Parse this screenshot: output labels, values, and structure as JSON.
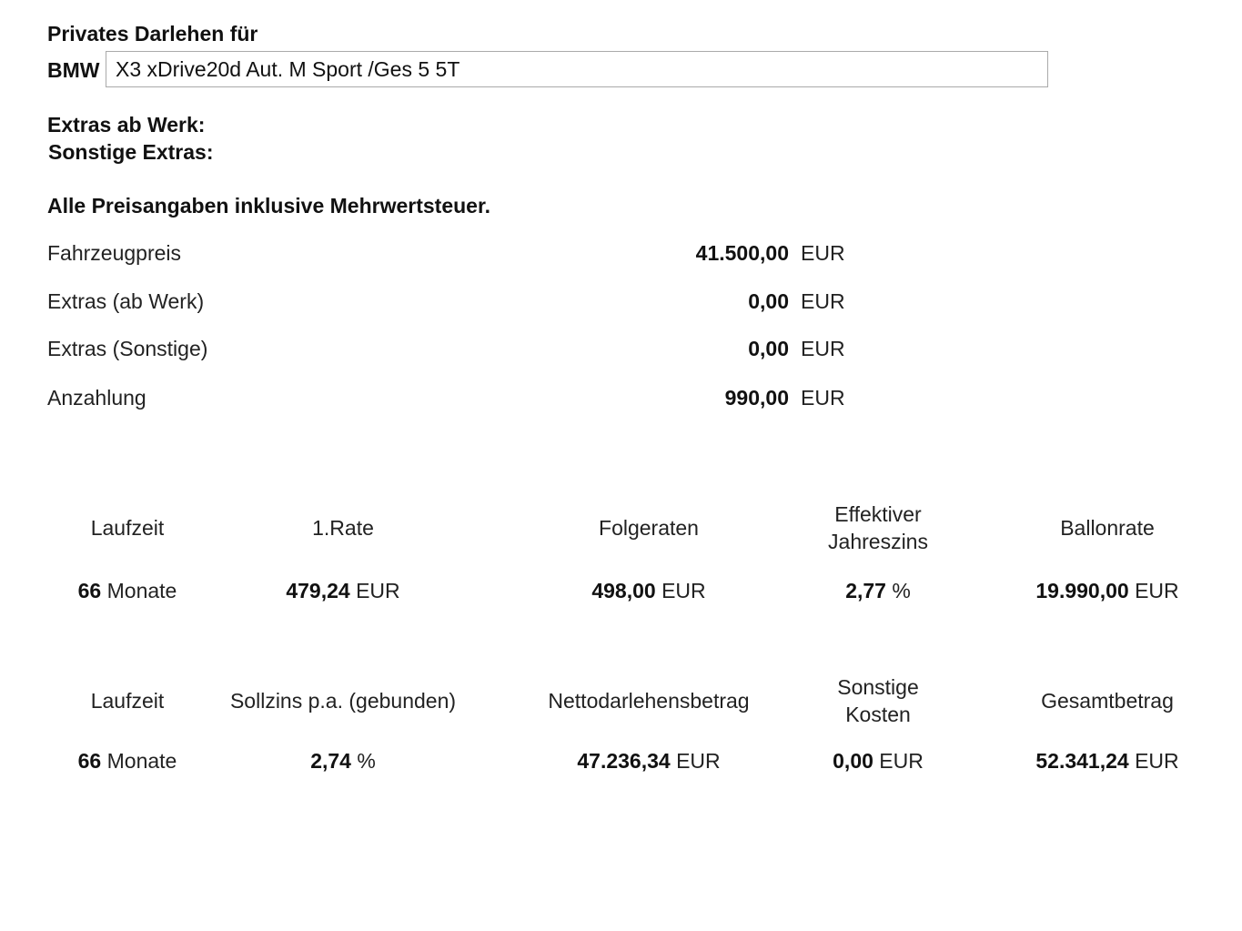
{
  "header": {
    "title": "Privates Darlehen für",
    "brand": "BMW",
    "model": "X3 xDrive20d Aut. M Sport /Ges 5 5T"
  },
  "extras": [
    "Extras ab Werk:",
    "Sonstige Extras:"
  ],
  "note": "Alle Preisangaben inklusive Mehrwertsteuer.",
  "prices": [
    {
      "label": "Fahrzeugpreis",
      "amount": "41.500,00",
      "unit": "EUR"
    },
    {
      "label": "Extras (ab Werk)",
      "amount": "0,00",
      "unit": "EUR"
    },
    {
      "label": "Extras (Sonstige)",
      "amount": "0,00",
      "unit": "EUR"
    },
    {
      "label": "Anzahlung",
      "amount": "990,00",
      "unit": "EUR"
    }
  ],
  "tables": [
    {
      "headers": [
        "Laufzeit",
        "1.Rate",
        "Folgeraten",
        "Effektiver Jahreszins",
        "Ballonrate"
      ],
      "values": [
        {
          "number": "66",
          "unit": "Monate"
        },
        {
          "number": "479,24",
          "unit": "EUR"
        },
        {
          "number": "498,00",
          "unit": "EUR"
        },
        {
          "number": "2,77",
          "unit": "%"
        },
        {
          "number": "19.990,00",
          "unit": "EUR"
        }
      ]
    },
    {
      "headers": [
        "Laufzeit",
        "Sollzins p.a. (gebunden)",
        "Nettodarlehensbetrag",
        "Sonstige Kosten",
        "Gesamtbetrag"
      ],
      "values": [
        {
          "number": "66",
          "unit": "Monate"
        },
        {
          "number": "2,74",
          "unit": "%"
        },
        {
          "number": "47.236,34",
          "unit": "EUR"
        },
        {
          "number": "0,00",
          "unit": "EUR"
        },
        {
          "number": "52.341,24",
          "unit": "EUR"
        }
      ]
    }
  ]
}
